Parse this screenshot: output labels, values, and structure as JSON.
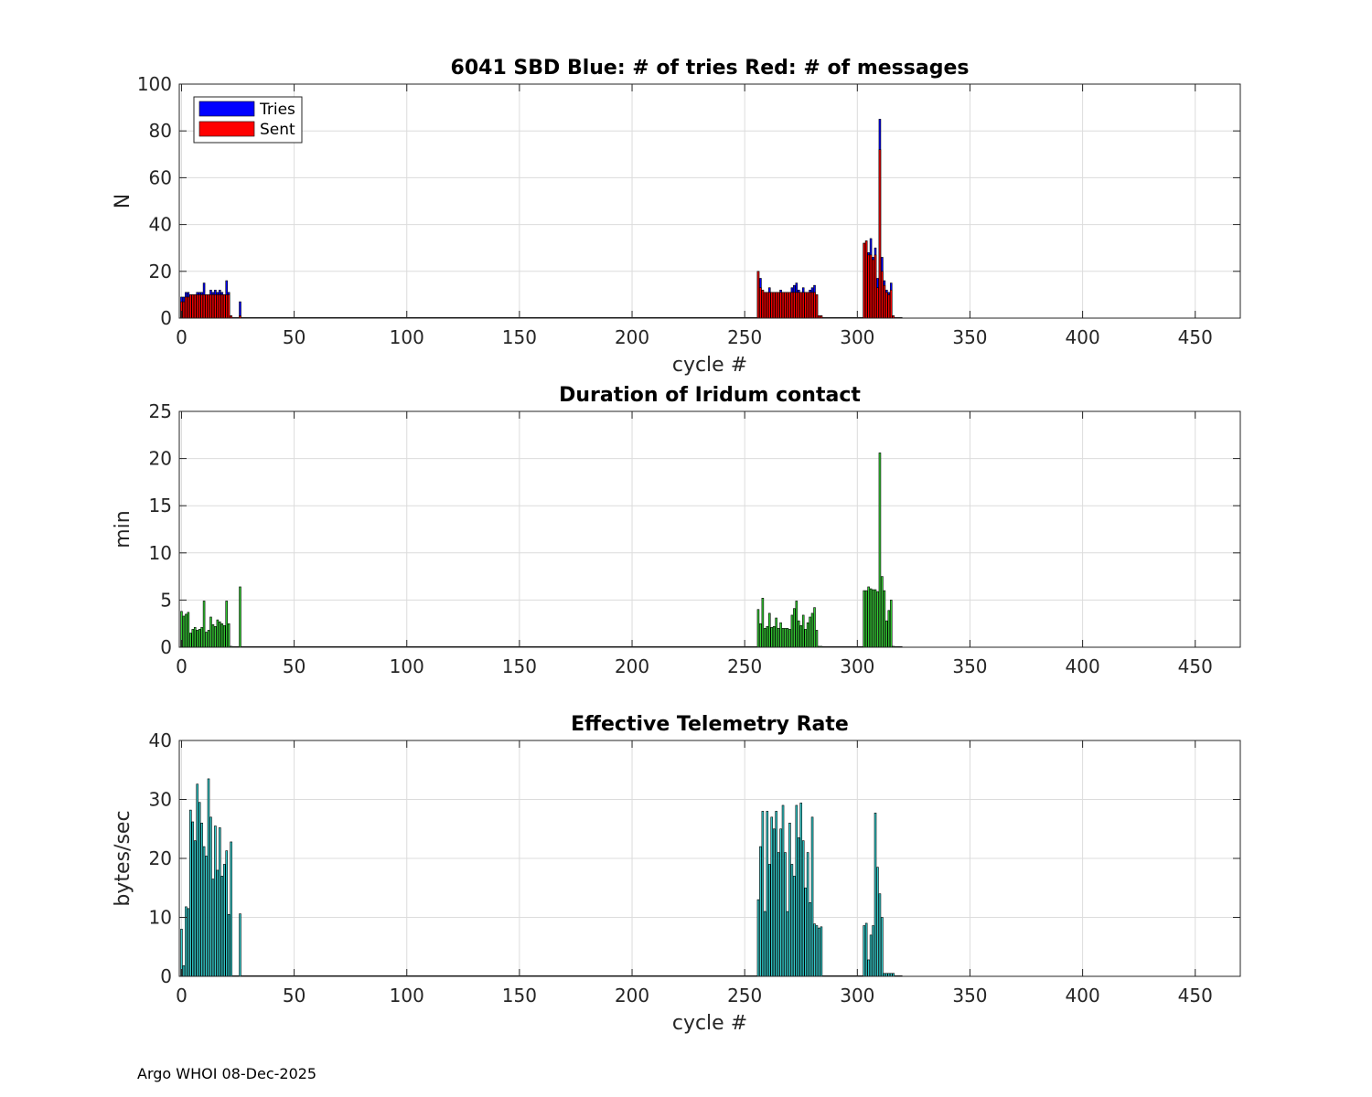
{
  "footer": "Argo WHOI 08-Dec-2025",
  "chart_data": [
    {
      "type": "bar",
      "title": "6041 SBD  Blue: # of tries   Red: # of messages",
      "xlabel": "cycle #",
      "ylabel": "N",
      "xlim": [
        -1,
        470
      ],
      "ylim": [
        0,
        100
      ],
      "xticks": [
        0,
        50,
        100,
        150,
        200,
        250,
        300,
        350,
        400,
        450
      ],
      "yticks": [
        0,
        20,
        40,
        60,
        80,
        100
      ],
      "grid": true,
      "legend_position": "top-left",
      "series": [
        {
          "name": "Tries",
          "color": "#0000ff",
          "x": [
            0,
            1,
            2,
            3,
            4,
            5,
            6,
            7,
            8,
            9,
            10,
            11,
            12,
            13,
            14,
            15,
            16,
            17,
            18,
            19,
            20,
            21,
            22,
            26,
            256,
            257,
            258,
            259,
            260,
            261,
            262,
            263,
            264,
            265,
            266,
            267,
            268,
            269,
            270,
            271,
            272,
            273,
            274,
            275,
            276,
            277,
            278,
            279,
            280,
            281,
            282,
            283,
            284,
            303,
            304,
            305,
            306,
            307,
            308,
            309,
            310,
            311,
            312,
            313,
            314,
            315,
            316
          ],
          "values": [
            9,
            9,
            11,
            11,
            10,
            10,
            10,
            11,
            11,
            11,
            15,
            10,
            10,
            12,
            11,
            12,
            11,
            12,
            11,
            10,
            16,
            11,
            1,
            7,
            20,
            17,
            12,
            11,
            11,
            13,
            11,
            11,
            11,
            11,
            12,
            11,
            11,
            11,
            11,
            13,
            14,
            15,
            12,
            11,
            13,
            11,
            11,
            12,
            13,
            14,
            10,
            1,
            1,
            32,
            33,
            28,
            34,
            26,
            30,
            17,
            85,
            26,
            16,
            12,
            11,
            15,
            1
          ]
        },
        {
          "name": "Sent",
          "color": "#ff0000",
          "x": [
            0,
            1,
            2,
            3,
            4,
            5,
            6,
            7,
            8,
            9,
            10,
            11,
            12,
            13,
            14,
            15,
            16,
            17,
            18,
            19,
            20,
            21,
            22,
            26,
            256,
            257,
            258,
            259,
            260,
            261,
            262,
            263,
            264,
            265,
            266,
            267,
            268,
            269,
            270,
            271,
            272,
            273,
            274,
            275,
            276,
            277,
            278,
            279,
            280,
            281,
            282,
            283,
            284,
            303,
            304,
            305,
            306,
            307,
            308,
            309,
            310,
            311,
            312,
            313,
            314,
            315,
            316
          ],
          "values": [
            7,
            7,
            9,
            9,
            10,
            10,
            10,
            10,
            10,
            10,
            10,
            10,
            10,
            10,
            10,
            10,
            10,
            10,
            10,
            10,
            10,
            10,
            1,
            1,
            20,
            13,
            12,
            11,
            11,
            11,
            11,
            11,
            11,
            11,
            11,
            11,
            11,
            11,
            11,
            11,
            11,
            11,
            11,
            11,
            11,
            11,
            11,
            11,
            11,
            11,
            10,
            1,
            1,
            32,
            33,
            27,
            27,
            25,
            27,
            13,
            72,
            20,
            14,
            11,
            10,
            12,
            1
          ]
        }
      ]
    },
    {
      "type": "bar",
      "title": "Duration of Iridum contact",
      "xlabel": "",
      "ylabel": "min",
      "xlim": [
        -1,
        470
      ],
      "ylim": [
        0,
        25
      ],
      "xticks": [
        0,
        50,
        100,
        150,
        200,
        250,
        300,
        350,
        400,
        450
      ],
      "yticks": [
        0,
        5,
        10,
        15,
        20,
        25
      ],
      "grid": true,
      "series": [
        {
          "color": "#33cc33",
          "x": [
            0,
            1,
            2,
            3,
            4,
            5,
            6,
            7,
            8,
            9,
            10,
            11,
            12,
            13,
            14,
            15,
            16,
            17,
            18,
            19,
            20,
            21,
            22,
            26,
            256,
            257,
            258,
            259,
            260,
            261,
            262,
            263,
            264,
            265,
            266,
            267,
            268,
            269,
            270,
            271,
            272,
            273,
            274,
            275,
            276,
            277,
            278,
            279,
            280,
            281,
            282,
            283,
            284,
            303,
            304,
            305,
            306,
            307,
            308,
            309,
            310,
            311,
            312,
            313,
            314,
            315,
            316
          ],
          "values": [
            3.8,
            3.3,
            3.5,
            3.7,
            1.5,
            1.9,
            2.1,
            1.8,
            1.9,
            2.1,
            4.9,
            1.6,
            1.8,
            3.2,
            2.4,
            2.2,
            2.9,
            2.7,
            2.5,
            2.3,
            4.9,
            2.5,
            0.1,
            6.4,
            4.0,
            2.5,
            5.2,
            2.0,
            2.2,
            3.6,
            2.1,
            2.2,
            3.1,
            2.0,
            2.6,
            2.0,
            2.0,
            2.0,
            1.9,
            3.4,
            4.1,
            4.9,
            2.8,
            2.3,
            3.4,
            1.9,
            2.6,
            3.2,
            3.6,
            4.2,
            1.8,
            0.1,
            0.1,
            6.0,
            6.0,
            6.4,
            6.2,
            6.1,
            6.1,
            5.9,
            20.6,
            7.5,
            6.0,
            2.8,
            3.9,
            5.0,
            0.1
          ]
        }
      ]
    },
    {
      "type": "bar",
      "title": "Effective Telemetry Rate",
      "xlabel": "cycle #",
      "ylabel": "bytes/sec",
      "xlim": [
        -1,
        470
      ],
      "ylim": [
        0,
        40
      ],
      "xticks": [
        0,
        50,
        100,
        150,
        200,
        250,
        300,
        350,
        400,
        450
      ],
      "yticks": [
        0,
        10,
        20,
        30,
        40
      ],
      "grid": true,
      "series": [
        {
          "color": "#33cccc",
          "x": [
            0,
            1,
            2,
            3,
            4,
            5,
            6,
            7,
            8,
            9,
            10,
            11,
            12,
            13,
            14,
            15,
            16,
            17,
            18,
            19,
            20,
            21,
            22,
            26,
            256,
            257,
            258,
            259,
            260,
            261,
            262,
            263,
            264,
            265,
            266,
            267,
            268,
            269,
            270,
            271,
            272,
            273,
            274,
            275,
            276,
            277,
            278,
            279,
            280,
            281,
            282,
            283,
            284,
            303,
            304,
            305,
            306,
            307,
            308,
            309,
            310,
            311,
            312,
            313,
            314,
            315,
            316
          ],
          "values": [
            8,
            1.8,
            11.8,
            11.5,
            28.2,
            26.2,
            23.0,
            32.6,
            29.5,
            26.0,
            22.0,
            20.4,
            33.5,
            27.0,
            16.5,
            25.5,
            18.0,
            25.2,
            17.0,
            19.0,
            21.3,
            10.5,
            22.8,
            10.6,
            13.0,
            22.0,
            28.0,
            11.0,
            28.0,
            19.0,
            27.0,
            25.0,
            28.0,
            21.0,
            25.0,
            29.0,
            21.0,
            11.0,
            26.0,
            19.0,
            17.0,
            29.0,
            23.5,
            29.4,
            23.0,
            15.0,
            21.0,
            12.5,
            27.0,
            8.9,
            8.6,
            8.2,
            8.4,
            8.6,
            9.0,
            2.8,
            7.0,
            8.6,
            27.7,
            18.5,
            14.0,
            10.0,
            0.5,
            0.5,
            0.5,
            0.5,
            0.5
          ]
        }
      ]
    }
  ]
}
